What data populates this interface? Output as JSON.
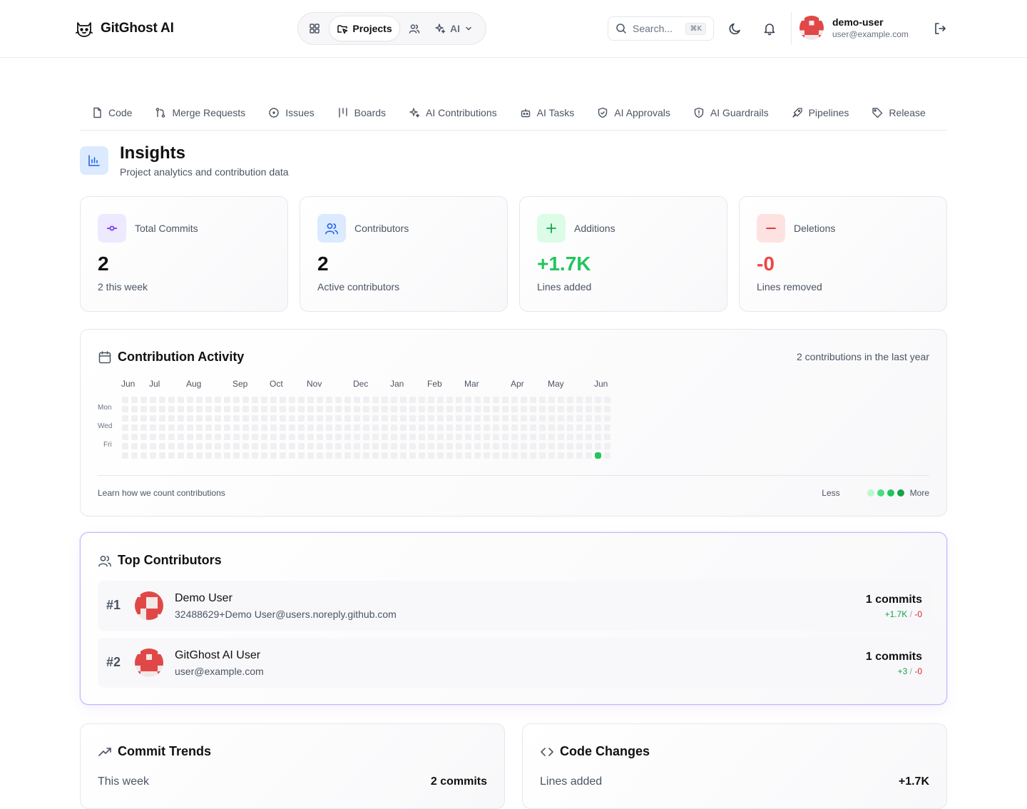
{
  "app": {
    "name": "GitGhost AI"
  },
  "nav": {
    "projects_label": "Projects",
    "ai_label": "AI"
  },
  "search": {
    "placeholder": "Search...",
    "shortcut": "⌘K"
  },
  "user": {
    "name": "demo-user",
    "email": "user@example.com"
  },
  "tabs": [
    {
      "label": "Code",
      "icon": "file-icon"
    },
    {
      "label": "Merge Requests",
      "icon": "git-merge-icon"
    },
    {
      "label": "Issues",
      "icon": "circle-dot-icon"
    },
    {
      "label": "Boards",
      "icon": "kanban-icon"
    },
    {
      "label": "AI Contributions",
      "icon": "sparkles-icon"
    },
    {
      "label": "AI Tasks",
      "icon": "bot-icon"
    },
    {
      "label": "AI Approvals",
      "icon": "shield-check-icon"
    },
    {
      "label": "AI Guardrails",
      "icon": "shield-alert-icon"
    },
    {
      "label": "Pipelines",
      "icon": "rocket-icon"
    },
    {
      "label": "Release",
      "icon": "tag-icon"
    }
  ],
  "page": {
    "title": "Insights",
    "subtitle": "Project analytics and contribution data"
  },
  "stats": [
    {
      "label": "Total Commits",
      "value": "2",
      "note": "2 this week",
      "color": "#8b5cf6"
    },
    {
      "label": "Contributors",
      "value": "2",
      "note": "Active contributors",
      "color": "#3b82f6"
    },
    {
      "label": "Additions",
      "value": "+1.7K",
      "note": "Lines added",
      "color": "#22c55e"
    },
    {
      "label": "Deletions",
      "value": "-0",
      "note": "Lines removed",
      "color": "#ef4444"
    }
  ],
  "activity": {
    "title": "Contribution Activity",
    "summary": "2 contributions in the last year",
    "months": [
      "Jun",
      "Jul",
      "Aug",
      "Sep",
      "Oct",
      "Nov",
      "Dec",
      "Jan",
      "Feb",
      "Mar",
      "Apr",
      "May",
      "Jun"
    ],
    "days": [
      "Mon",
      "Wed",
      "Fri"
    ],
    "learn_link": "Learn how we count contributions",
    "legend_less": "Less",
    "legend_more": "More",
    "active_color": "#22c55e"
  },
  "top_contributors": {
    "title": "Top Contributors",
    "rows": [
      {
        "rank": "#1",
        "name": "Demo User",
        "email": "32488629+Demo User@users.noreply.github.com",
        "commits": "1 commits",
        "additions": "+1.7K",
        "deletions": "-0"
      },
      {
        "rank": "#2",
        "name": "GitGhost AI User",
        "email": "user@example.com",
        "commits": "1 commits",
        "additions": "+3",
        "deletions": "-0"
      }
    ]
  },
  "commit_trends": {
    "title": "Commit Trends",
    "row_label": "This week",
    "row_value": "2 commits"
  },
  "code_changes": {
    "title": "Code Changes",
    "row_label": "Lines added",
    "row_value": "+1.7K"
  }
}
